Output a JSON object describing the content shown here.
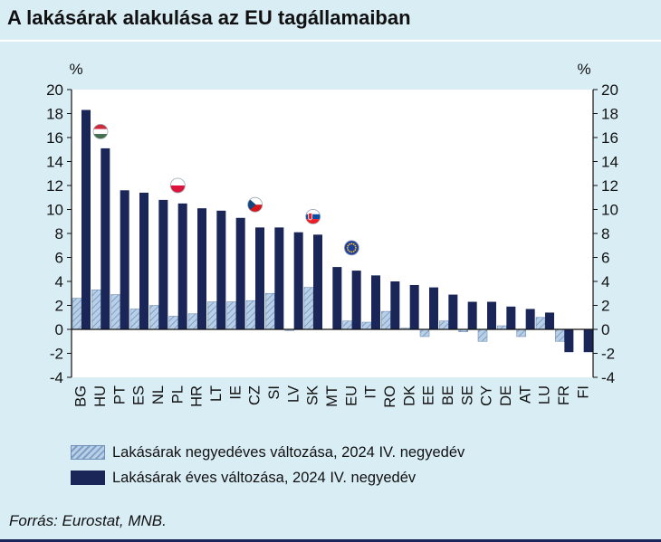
{
  "title": "A lakásárak alakulása az EU tagállamaiban",
  "source": "Forrás: Eurostat, MNB.",
  "colors": {
    "background": "#d9edf5",
    "annual": "#1a2558",
    "quarterly_fill": "#b9cfe6",
    "quarterly_hatch": "#7e9fc7"
  },
  "chart_data": {
    "type": "bar",
    "unit_left": "%",
    "unit_right": "%",
    "ylim": [
      -4,
      20
    ],
    "yticks": [
      -4,
      -2,
      0,
      2,
      4,
      6,
      8,
      10,
      12,
      14,
      16,
      18,
      20
    ],
    "categories": [
      "BG",
      "HU",
      "PT",
      "ES",
      "NL",
      "PL",
      "HR",
      "LT",
      "IE",
      "CZ",
      "SI",
      "LV",
      "SK",
      "MT",
      "EU",
      "IT",
      "RO",
      "DK",
      "EE",
      "BE",
      "SE",
      "CY",
      "DE",
      "AT",
      "LU",
      "FR",
      "FI"
    ],
    "series": [
      {
        "name": "Lakásárak negyedéves változása, 2024 IV. negyedév",
        "style": "hatched",
        "values": [
          2.6,
          3.3,
          2.9,
          1.7,
          2.0,
          1.1,
          1.3,
          2.3,
          2.3,
          2.4,
          3.0,
          -0.1,
          3.5,
          0.0,
          0.7,
          0.6,
          1.5,
          0.1,
          -0.6,
          0.7,
          -0.2,
          -1.0,
          0.3,
          -0.6,
          1.0,
          -1.0,
          0.0
        ]
      },
      {
        "name": "Lakásárak éves változása, 2024 IV. negyedév",
        "style": "solid",
        "values": [
          18.3,
          15.1,
          11.6,
          11.4,
          10.8,
          10.5,
          10.1,
          9.9,
          9.3,
          8.5,
          8.5,
          8.1,
          7.9,
          5.2,
          4.9,
          4.5,
          4.0,
          3.7,
          3.5,
          2.9,
          2.3,
          2.3,
          1.9,
          1.7,
          1.4,
          -1.9,
          -1.9
        ]
      }
    ],
    "flags": [
      {
        "country": "HU",
        "icon": "hungary-flag-icon",
        "value": 16.5
      },
      {
        "country": "PL",
        "icon": "poland-flag-icon",
        "value": 12.0
      },
      {
        "country": "CZ",
        "icon": "czech-flag-icon",
        "value": 10.4
      },
      {
        "country": "SK",
        "icon": "slovakia-flag-icon",
        "value": 9.4
      },
      {
        "country": "EU",
        "icon": "eu-flag-icon",
        "value": 6.8
      }
    ],
    "grid": false,
    "legend_position": "bottom-left"
  }
}
